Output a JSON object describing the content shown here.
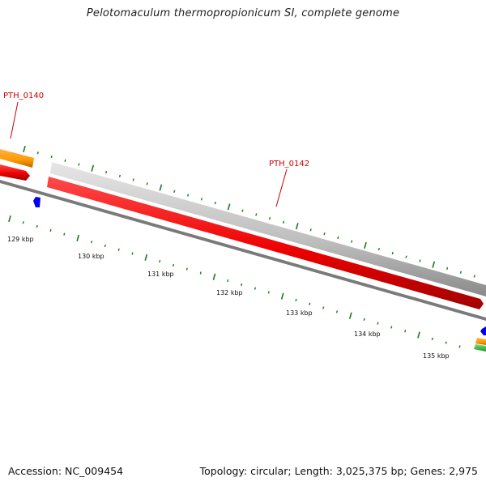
{
  "map": {
    "title": "Pelotomaculum thermopropionicum SI, complete genome",
    "gene_labels": [
      {
        "text": "PTH_0140"
      },
      {
        "text": "PTH_0142"
      }
    ],
    "scale_labels": [
      "129 kbp",
      "130 kbp",
      "131 kbp",
      "132 kbp",
      "133 kbp",
      "134 kbp",
      "135 kbp"
    ],
    "colors": {
      "forward_cds": "#ff0000",
      "reverse_cds": "#c0c0c0",
      "orf": "#ff9900",
      "small_feature": "#0000ff",
      "other_feature": "#33bb33",
      "backbone": "#808080",
      "ticks": "#1a7a1a",
      "label_text": "#cc0000"
    }
  },
  "footer": {
    "accession": "Accession: NC_009454",
    "topology": "Topology: circular; Length: 3,025,375 bp; Genes: 2,975"
  }
}
